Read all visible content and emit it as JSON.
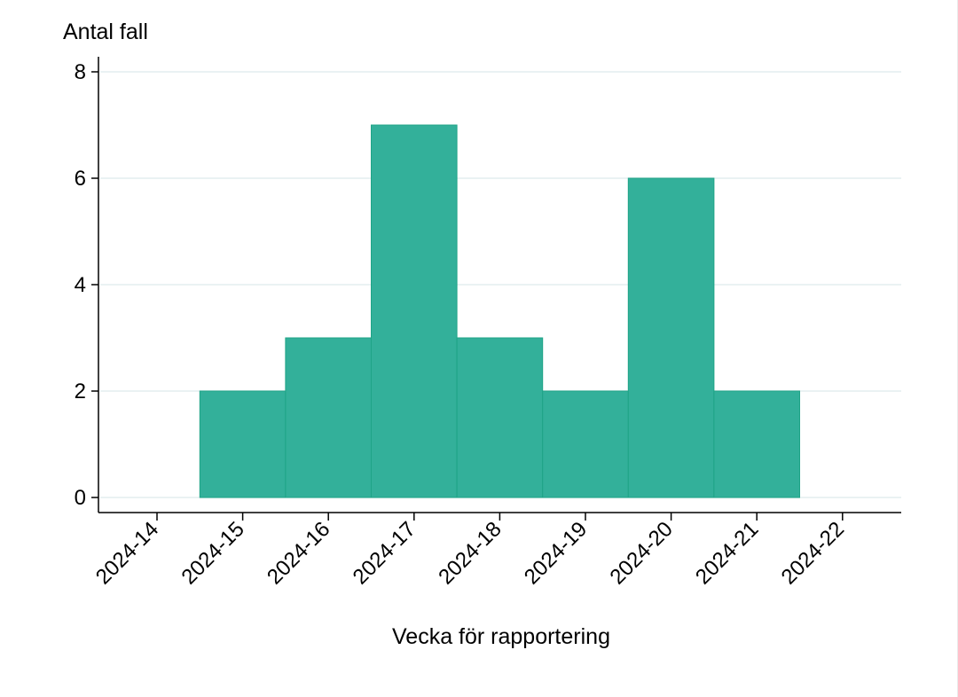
{
  "chart_data": {
    "type": "bar",
    "title": "",
    "xlabel": "Vecka för rapportering",
    "ylabel": "Antal fall",
    "categories": [
      "2024-14",
      "2024-15",
      "2024-16",
      "2024-17",
      "2024-18",
      "2024-19",
      "2024-20",
      "2024-21",
      "2024-22"
    ],
    "values": [
      0,
      2,
      3,
      7,
      3,
      2,
      6,
      2,
      0
    ],
    "ylim": [
      0,
      8
    ],
    "yticks": [
      0,
      2,
      4,
      6,
      8
    ],
    "grid": true,
    "legend": null,
    "colors": {
      "bar": "#33b09a",
      "bar_edge": "#1fa487",
      "grid": "#eaf2f3",
      "axis": "#000000"
    }
  }
}
